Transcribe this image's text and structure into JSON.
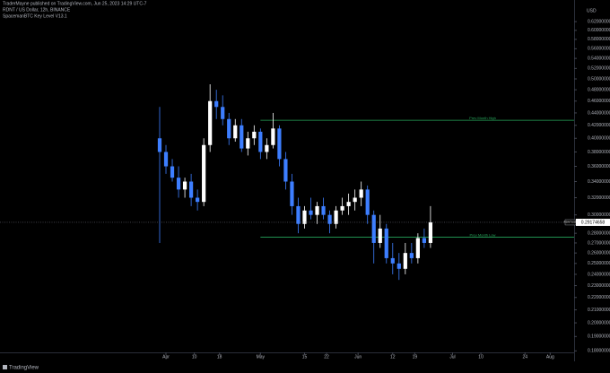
{
  "header": {
    "publisher": "TraderMayne published on TradingView.com, Jun 25, 2023 14:29 UTC-7",
    "symbol": "RDNT / US Dollar, 12h, BINANCE",
    "indicator": "SpacemanBTC Key Level V13.1"
  },
  "footer": {
    "brand": "TradingView"
  },
  "chart_data": {
    "type": "candlestick",
    "currency": "USD",
    "log_scale": true,
    "up_color": "#ffffff",
    "down_color": "#3d7eff",
    "level_color": "#26a65b",
    "x": [
      89,
      91,
      93,
      95,
      97,
      99,
      101,
      103,
      105,
      107,
      109,
      111,
      113,
      115,
      117,
      119,
      121,
      123,
      125,
      127,
      129,
      131,
      133,
      135,
      137,
      139,
      141,
      143,
      145,
      147,
      149,
      151,
      153,
      155,
      157,
      159,
      161,
      163,
      165,
      167,
      169,
      171,
      173,
      175
    ],
    "open": [
      0.4,
      0.38,
      0.36,
      0.345,
      0.33,
      0.34,
      0.32,
      0.315,
      0.39,
      0.46,
      0.45,
      0.43,
      0.4,
      0.42,
      0.385,
      0.4,
      0.41,
      0.38,
      0.39,
      0.415,
      0.37,
      0.34,
      0.31,
      0.29,
      0.305,
      0.3,
      0.31,
      0.3,
      0.29,
      0.305,
      0.31,
      0.315,
      0.32,
      0.33,
      0.3,
      0.27,
      0.285,
      0.255,
      0.25,
      0.245,
      0.26,
      0.255,
      0.275,
      0.27
    ],
    "high": [
      0.45,
      0.39,
      0.37,
      0.36,
      0.345,
      0.35,
      0.33,
      0.4,
      0.49,
      0.48,
      0.47,
      0.44,
      0.43,
      0.43,
      0.41,
      0.42,
      0.415,
      0.4,
      0.44,
      0.42,
      0.38,
      0.35,
      0.32,
      0.31,
      0.32,
      0.315,
      0.32,
      0.305,
      0.31,
      0.32,
      0.325,
      0.33,
      0.34,
      0.335,
      0.305,
      0.3,
      0.29,
      0.27,
      0.26,
      0.27,
      0.27,
      0.28,
      0.285,
      0.31
    ],
    "low": [
      0.27,
      0.35,
      0.34,
      0.32,
      0.32,
      0.31,
      0.305,
      0.31,
      0.38,
      0.43,
      0.42,
      0.39,
      0.395,
      0.38,
      0.375,
      0.39,
      0.37,
      0.37,
      0.385,
      0.36,
      0.33,
      0.3,
      0.28,
      0.285,
      0.295,
      0.29,
      0.295,
      0.28,
      0.285,
      0.3,
      0.3,
      0.305,
      0.31,
      0.29,
      0.25,
      0.265,
      0.25,
      0.24,
      0.235,
      0.24,
      0.25,
      0.25,
      0.265,
      0.265
    ],
    "close": [
      0.38,
      0.36,
      0.345,
      0.33,
      0.34,
      0.32,
      0.315,
      0.39,
      0.46,
      0.45,
      0.43,
      0.4,
      0.42,
      0.385,
      0.4,
      0.41,
      0.38,
      0.39,
      0.415,
      0.37,
      0.34,
      0.31,
      0.29,
      0.305,
      0.3,
      0.31,
      0.3,
      0.29,
      0.305,
      0.31,
      0.315,
      0.32,
      0.33,
      0.3,
      0.27,
      0.285,
      0.255,
      0.25,
      0.245,
      0.26,
      0.255,
      0.275,
      0.27,
      0.29174658
    ],
    "last_price": 0.29174658,
    "last_symbol": "RDNTUSD",
    "key_levels": [
      {
        "label": "Prev Month High",
        "value": 0.428
      },
      {
        "label": "Prev Month Low",
        "value": 0.276
      }
    ],
    "key_level_start": 121,
    "xlim": [
      38.3,
      220.6
    ],
    "xticks": [
      {
        "value": 91,
        "label": "Apr"
      },
      {
        "value": 100,
        "label": "10"
      },
      {
        "value": 108,
        "label": "18"
      },
      {
        "value": 121,
        "label": "May"
      },
      {
        "value": 135,
        "label": "15"
      },
      {
        "value": 142,
        "label": "22"
      },
      {
        "value": 152,
        "label": "Jun"
      },
      {
        "value": 163,
        "label": "12"
      },
      {
        "value": 170,
        "label": "19"
      },
      {
        "value": 182,
        "label": "Jul"
      },
      {
        "value": 191,
        "label": "10"
      },
      {
        "value": 205,
        "label": "24"
      },
      {
        "value": 213,
        "label": "Aug"
      }
    ],
    "ylim": [
      0.179,
      0.659
    ],
    "yticks": [
      {
        "value": 0.62,
        "label": "0.62000000"
      },
      {
        "value": 0.6,
        "label": "0.60000000"
      },
      {
        "value": 0.58,
        "label": "0.58000000"
      },
      {
        "value": 0.56,
        "label": "0.56000000"
      },
      {
        "value": 0.54,
        "label": "0.54000000"
      },
      {
        "value": 0.52,
        "label": "0.52000000"
      },
      {
        "value": 0.5,
        "label": "0.50000000"
      },
      {
        "value": 0.48,
        "label": "0.48000000"
      },
      {
        "value": 0.46,
        "label": "0.46000000"
      },
      {
        "value": 0.44,
        "label": "0.44000000"
      },
      {
        "value": 0.42,
        "label": "0.42000000"
      },
      {
        "value": 0.4,
        "label": "0.40000000"
      },
      {
        "value": 0.38,
        "label": "0.38000000"
      },
      {
        "value": 0.36,
        "label": "0.36000000"
      },
      {
        "value": 0.34,
        "label": "0.34000000"
      },
      {
        "value": 0.32,
        "label": "0.32000000"
      },
      {
        "value": 0.3,
        "label": "0.30000000"
      },
      {
        "value": 0.28,
        "label": "0.28000000"
      },
      {
        "value": 0.27,
        "label": "0.27000000"
      },
      {
        "value": 0.26,
        "label": "0.26000000"
      },
      {
        "value": 0.25,
        "label": "0.25000000"
      },
      {
        "value": 0.24,
        "label": "0.24000000"
      },
      {
        "value": 0.23,
        "label": "0.23000000"
      },
      {
        "value": 0.22,
        "label": "0.22000000"
      },
      {
        "value": 0.21,
        "label": "0.21000000"
      },
      {
        "value": 0.2,
        "label": "0.20000000"
      },
      {
        "value": 0.19,
        "label": "0.19000000"
      },
      {
        "value": 0.18,
        "label": "0.18000000"
      }
    ]
  }
}
